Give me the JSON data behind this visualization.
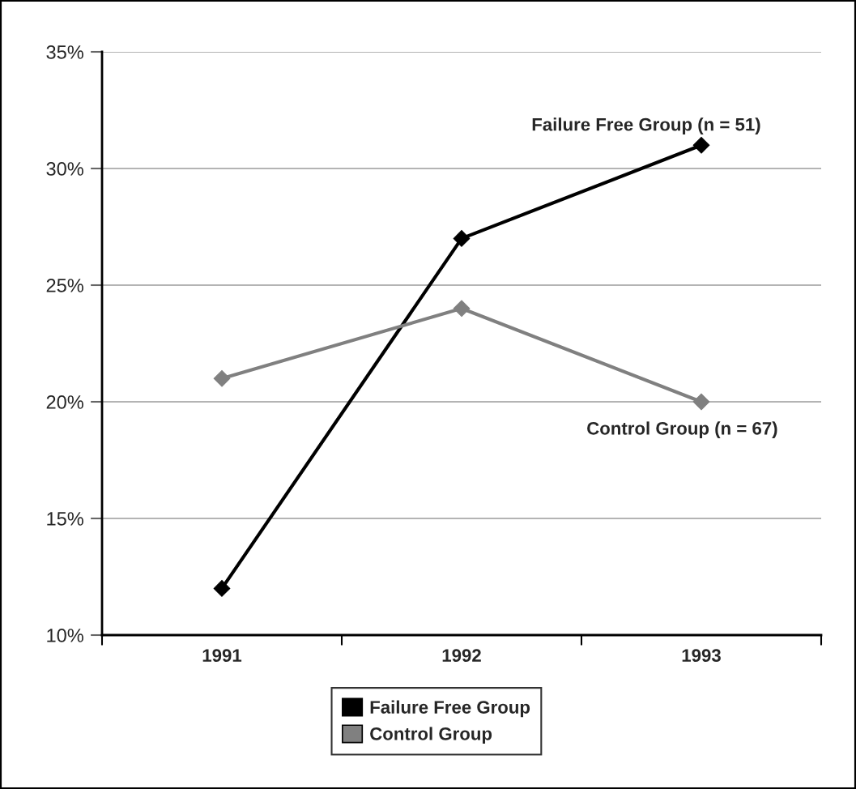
{
  "chart_data": {
    "type": "line",
    "categories": [
      "1991",
      "1992",
      "1993"
    ],
    "series": [
      {
        "name": "Failure Free Group",
        "color": "#000000",
        "values": [
          12,
          27,
          31
        ]
      },
      {
        "name": "Control Group",
        "color": "#808080",
        "values": [
          21,
          24,
          20
        ]
      }
    ],
    "ylim": [
      10,
      35
    ],
    "yticks": [
      {
        "value": 10,
        "label": "10%"
      },
      {
        "value": 15,
        "label": "15%"
      },
      {
        "value": 20,
        "label": "20%"
      },
      {
        "value": 25,
        "label": "25%"
      },
      {
        "value": 30,
        "label": "30%"
      },
      {
        "value": 35,
        "label": "35%"
      }
    ],
    "annotations": [
      {
        "text": "Failure Free Group (n = 51)",
        "x": "1993",
        "y": 31
      },
      {
        "text": "Control Group (n = 67)",
        "x": "1993",
        "y": 20
      }
    ],
    "grid": "y",
    "legend": "bottom",
    "marker": "diamond",
    "line_style": "solid"
  }
}
